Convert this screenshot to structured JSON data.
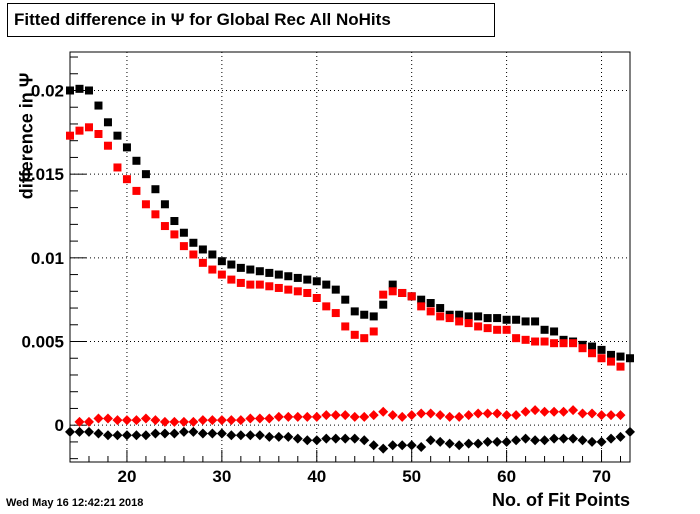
{
  "title": "Fitted difference in  Ψ  for Global Rec All NoHits",
  "timestamp": "Wed May 16 12:42:21 2018",
  "chart_data": {
    "type": "scatter",
    "title": "Fitted difference in  Ψ  for Global Rec All NoHits",
    "xlabel": "No. of Fit Points",
    "ylabel": "difference in  Ψ",
    "xlim": [
      14,
      73
    ],
    "ylim": [
      -0.0022,
      0.0223
    ],
    "x_ticks": [
      20,
      30,
      40,
      50,
      60,
      70
    ],
    "y_ticks": [
      0,
      0.005,
      0.01,
      0.015,
      0.02
    ],
    "y_tick_labels": [
      "0",
      "0.005",
      "0.01",
      "0.015",
      "0.02"
    ],
    "x_tick_labels": [
      "20",
      "30",
      "40",
      "50",
      "60",
      "70"
    ],
    "grid": true,
    "series": [
      {
        "marker": "square",
        "color": "#000000",
        "x": [
          14,
          15,
          16,
          17,
          18,
          19,
          20,
          21,
          22,
          23,
          24,
          25,
          26,
          27,
          28,
          29,
          30,
          31,
          32,
          33,
          34,
          35,
          36,
          37,
          38,
          39,
          40,
          41,
          42,
          43,
          44,
          45,
          46,
          47,
          48,
          49,
          50,
          51,
          52,
          53,
          54,
          55,
          56,
          57,
          58,
          59,
          60,
          61,
          62,
          63,
          64,
          65,
          66,
          67,
          68,
          69,
          70,
          71,
          72,
          73
        ],
        "values": [
          0.02,
          0.0201,
          0.02,
          0.0191,
          0.0181,
          0.0173,
          0.0166,
          0.0158,
          0.015,
          0.0141,
          0.0132,
          0.0122,
          0.0115,
          0.0109,
          0.0105,
          0.0102,
          0.0098,
          0.0096,
          0.0094,
          0.0093,
          0.0092,
          0.0091,
          0.009,
          0.0089,
          0.0088,
          0.0087,
          0.0086,
          0.0084,
          0.0081,
          0.0075,
          0.0068,
          0.0066,
          0.0065,
          0.0072,
          0.0084,
          0.0079,
          0.0077,
          0.0075,
          0.0073,
          0.007,
          0.0066,
          0.0066,
          0.0065,
          0.0065,
          0.0064,
          0.0064,
          0.0063,
          0.0063,
          0.0062,
          0.0062,
          0.0057,
          0.0056,
          0.0051,
          0.005,
          0.0048,
          0.0047,
          0.0045,
          0.0042,
          0.0041,
          0.004
        ]
      },
      {
        "marker": "square",
        "color": "#ff0000",
        "x": [
          14,
          15,
          16,
          17,
          18,
          19,
          20,
          21,
          22,
          23,
          24,
          25,
          26,
          27,
          28,
          29,
          30,
          31,
          32,
          33,
          34,
          35,
          36,
          37,
          38,
          39,
          40,
          41,
          42,
          43,
          44,
          45,
          46,
          47,
          48,
          49,
          50,
          51,
          52,
          53,
          54,
          55,
          56,
          57,
          58,
          59,
          60,
          61,
          62,
          63,
          64,
          65,
          66,
          67,
          68,
          69,
          70,
          71,
          72
        ],
        "values": [
          0.0173,
          0.0176,
          0.0178,
          0.0174,
          0.0167,
          0.0154,
          0.0147,
          0.014,
          0.0132,
          0.0126,
          0.0119,
          0.0114,
          0.0107,
          0.0102,
          0.0097,
          0.0093,
          0.009,
          0.0087,
          0.0085,
          0.0084,
          0.0084,
          0.0083,
          0.0082,
          0.0081,
          0.008,
          0.0079,
          0.0076,
          0.0071,
          0.0067,
          0.0059,
          0.0054,
          0.0052,
          0.0056,
          0.0078,
          0.008,
          0.0079,
          0.0077,
          0.0071,
          0.0068,
          0.0065,
          0.0064,
          0.0062,
          0.0061,
          0.0059,
          0.0058,
          0.0057,
          0.0057,
          0.0052,
          0.0051,
          0.005,
          0.005,
          0.0049,
          0.0049,
          0.0049,
          0.0046,
          0.0043,
          0.004,
          0.0038,
          0.0035
        ]
      },
      {
        "marker": "diamond",
        "color": "#ff0000",
        "x": [
          15,
          16,
          17,
          18,
          19,
          20,
          21,
          22,
          23,
          24,
          25,
          26,
          27,
          28,
          29,
          30,
          31,
          32,
          33,
          34,
          35,
          36,
          37,
          38,
          39,
          40,
          41,
          42,
          43,
          44,
          45,
          46,
          47,
          48,
          49,
          50,
          51,
          52,
          53,
          54,
          55,
          56,
          57,
          58,
          59,
          60,
          61,
          62,
          63,
          64,
          65,
          66,
          67,
          68,
          69,
          70,
          71,
          72
        ],
        "values": [
          0.0002,
          0.0002,
          0.0004,
          0.0004,
          0.0003,
          0.0003,
          0.0003,
          0.0004,
          0.0003,
          0.0002,
          0.0002,
          0.0002,
          0.0002,
          0.0003,
          0.0003,
          0.0003,
          0.0003,
          0.0003,
          0.0004,
          0.0004,
          0.0004,
          0.0005,
          0.0005,
          0.0005,
          0.0005,
          0.0005,
          0.0006,
          0.0006,
          0.0006,
          0.0005,
          0.0005,
          0.0006,
          0.0008,
          0.0006,
          0.0005,
          0.0006,
          0.0007,
          0.0007,
          0.0006,
          0.0005,
          0.0005,
          0.0006,
          0.0007,
          0.0007,
          0.0007,
          0.0006,
          0.0006,
          0.0008,
          0.0009,
          0.0008,
          0.0008,
          0.0008,
          0.0009,
          0.0007,
          0.0007,
          0.0006,
          0.0006,
          0.0006
        ]
      },
      {
        "marker": "diamond",
        "color": "#000000",
        "x": [
          14,
          15,
          16,
          17,
          18,
          19,
          20,
          21,
          22,
          23,
          24,
          25,
          26,
          27,
          28,
          29,
          30,
          31,
          32,
          33,
          34,
          35,
          36,
          37,
          38,
          39,
          40,
          41,
          42,
          43,
          44,
          45,
          46,
          47,
          48,
          49,
          50,
          51,
          52,
          53,
          54,
          55,
          56,
          57,
          58,
          59,
          60,
          61,
          62,
          63,
          64,
          65,
          66,
          67,
          68,
          69,
          70,
          71,
          72,
          73
        ],
        "values": [
          -0.0004,
          -0.0004,
          -0.0004,
          -0.0005,
          -0.0006,
          -0.0006,
          -0.0006,
          -0.0006,
          -0.0006,
          -0.0005,
          -0.0005,
          -0.0005,
          -0.0004,
          -0.0004,
          -0.0005,
          -0.0005,
          -0.0005,
          -0.0006,
          -0.0006,
          -0.0006,
          -0.0006,
          -0.0007,
          -0.0007,
          -0.0007,
          -0.0008,
          -0.0009,
          -0.0009,
          -0.0008,
          -0.0008,
          -0.0008,
          -0.0008,
          -0.0009,
          -0.0012,
          -0.0014,
          -0.0012,
          -0.0012,
          -0.0012,
          -0.0013,
          -0.0009,
          -0.001,
          -0.0011,
          -0.0012,
          -0.0011,
          -0.0011,
          -0.001,
          -0.001,
          -0.001,
          -0.0009,
          -0.0008,
          -0.0009,
          -0.0009,
          -0.0008,
          -0.0008,
          -0.0008,
          -0.0009,
          -0.001,
          -0.001,
          -0.0008,
          -0.0007,
          -0.0004
        ]
      }
    ]
  }
}
